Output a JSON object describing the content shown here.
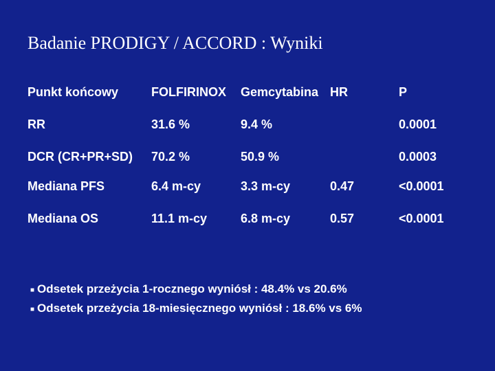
{
  "slide": {
    "background_color": "#12228d",
    "text_color": "#ffffff",
    "title": "Badanie PRODIGY / ACCORD : Wyniki",
    "title_fontsize": 26,
    "title_font": "Times New Roman",
    "table": {
      "header_fontsize": 18,
      "cell_fontsize": 18,
      "font_weight": "bold",
      "columns": {
        "endpoint": "Punkt końcowy",
        "arm_a": "FOLFIRINOX",
        "arm_b": "Gemcytabina",
        "hr": "HR",
        "p": "P"
      },
      "rows": [
        {
          "endpoint": "RR",
          "arm_a": "31.6 %",
          "arm_b": "9.4 %",
          "hr": "",
          "p": "0.0001"
        },
        {
          "endpoint": "DCR (CR+PR+SD)",
          "arm_a": "70.2 %",
          "arm_b": "50.9 %",
          "hr": "",
          "p": "0.0003"
        },
        {
          "endpoint": "Mediana PFS",
          "arm_a": "6.4 m-cy",
          "arm_b": "3.3 m-cy",
          "hr": "0.47",
          "p": "<0.0001"
        },
        {
          "endpoint": "Mediana OS",
          "arm_a": "11.1 m-cy",
          "arm_b": "6.8 m-cy",
          "hr": "0.57",
          "p": "<0.0001"
        }
      ]
    },
    "bullets": {
      "fontsize": 17,
      "items": [
        "Odsetek przeżycia 1-rocznego wyniósł :  48.4%  vs  20.6%",
        "Odsetek przeżycia 18-miesięcznego wyniósł :  18.6%  vs  6%"
      ]
    }
  }
}
